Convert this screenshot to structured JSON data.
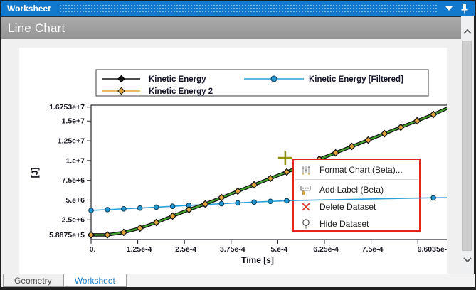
{
  "window": {
    "title": "Worksheet"
  },
  "titlebar_icons": [
    "chevron-down-icon",
    "pin-icon"
  ],
  "panel": {
    "title": "Line Chart"
  },
  "tabs": {
    "items": [
      {
        "label": "Geometry"
      },
      {
        "label": "Worksheet"
      }
    ],
    "active_index": 1
  },
  "context_menu": {
    "border_color": "#e4241f",
    "items": [
      {
        "icon": "format-chart-icon",
        "label": "Format Chart (Beta)..."
      },
      {
        "icon": "add-label-icon",
        "label": "Add Label (Beta)"
      },
      {
        "icon": "delete-icon",
        "label": "Delete Dataset"
      },
      {
        "icon": "hide-icon",
        "label": "Hide Dataset"
      }
    ]
  },
  "colors": {
    "titlebar": "#1279cc",
    "header": "#9d9d9d",
    "selection_green": "#42a32c",
    "series_black": "#141414",
    "series_orange": "#e2a33c",
    "series_blue": "#2b9fd8",
    "crosshair": "#93930e",
    "tab_active_text": "#1779c4"
  },
  "chart_data": {
    "type": "line",
    "title": "",
    "xlabel": "Time [s]",
    "ylabel": "[J]",
    "xlim": [
      0,
      0.00096035
    ],
    "ylim": [
      0,
      17000000
    ],
    "grid": false,
    "legend_position": "top",
    "selection_highlight_color": "#42a32c",
    "crosshair": {
      "x": 0.00052,
      "y": 10340000
    },
    "x_ticks": [
      {
        "value": 0,
        "label": "0."
      },
      {
        "value": 0.000125,
        "label": "1.25e-4"
      },
      {
        "value": 0.00025,
        "label": "2.5e-4"
      },
      {
        "value": 0.000375,
        "label": "3.75e-4"
      },
      {
        "value": 0.0005,
        "label": "5.e-4"
      },
      {
        "value": 0.000625,
        "label": "6.25e-4"
      },
      {
        "value": 0.00075,
        "label": "7.5e-4"
      },
      {
        "value": 0.000875,
        "label": ""
      },
      {
        "value": 0.00096035,
        "label": "9.6035e-4"
      }
    ],
    "y_ticks": [
      {
        "value": 588750,
        "label": "5.8875e+5"
      },
      {
        "value": 2500000,
        "label": "2.5e+6"
      },
      {
        "value": 5000000,
        "label": "5.e+6"
      },
      {
        "value": 7500000,
        "label": "7.5e+6"
      },
      {
        "value": 10000000,
        "label": "1.e+7"
      },
      {
        "value": 12500000,
        "label": "1.25e+7"
      },
      {
        "value": 15000000,
        "label": "1.5e+7"
      },
      {
        "value": 16753000,
        "label": "1.6753e+7"
      }
    ],
    "x": [
      0,
      4.37e-05,
      8.73e-05,
      0.000131,
      0.0001746,
      0.0002183,
      0.000262,
      0.0003056,
      0.0003493,
      0.0003929,
      0.0004366,
      0.0004802,
      0.0005239,
      0.0005675,
      0.0006112,
      0.0006548,
      0.0006985,
      0.0007421,
      0.0007858,
      0.0008294,
      0.0008731,
      0.0009167,
      0.00096035
    ],
    "series": [
      {
        "name": "Kinetic Energy",
        "color": "#141414",
        "marker": "diamond",
        "marker_fill": "#141414",
        "selected": true,
        "values": [
          588750,
          590000,
          900000,
          1440000,
          2160000,
          2970000,
          3780000,
          4500000,
          5310000,
          6120000,
          6930000,
          7740000,
          8540000,
          9360000,
          10160000,
          10970000,
          11780000,
          12590000,
          13400000,
          14210000,
          15020000,
          15830000,
          16753000
        ]
      },
      {
        "name": "Kinetic Energy 2",
        "color": "#e2a33c",
        "marker": "diamond",
        "marker_fill": "#e2a33c",
        "selected": true,
        "values": [
          588750,
          590000,
          900000,
          1440000,
          2160000,
          2970000,
          3780000,
          4500000,
          5310000,
          6120000,
          6930000,
          7740000,
          8540000,
          9360000,
          10160000,
          10970000,
          11780000,
          12590000,
          13400000,
          14210000,
          15020000,
          15830000,
          16753000
        ]
      },
      {
        "name": "Kinetic Energy [Filtered]",
        "color": "#2b9fd8",
        "marker": "circle",
        "marker_fill": "#2196d3",
        "selected": false,
        "values": [
          3690000,
          3790000,
          3890000,
          3990000,
          4100000,
          4210000,
          4320000,
          4430000,
          4540000,
          4640000,
          4740000,
          4830000,
          4910000,
          4980000,
          5040000,
          5090000,
          5130000,
          5160000,
          5190000,
          5220000,
          5250000,
          5280000,
          5310000
        ]
      }
    ]
  }
}
